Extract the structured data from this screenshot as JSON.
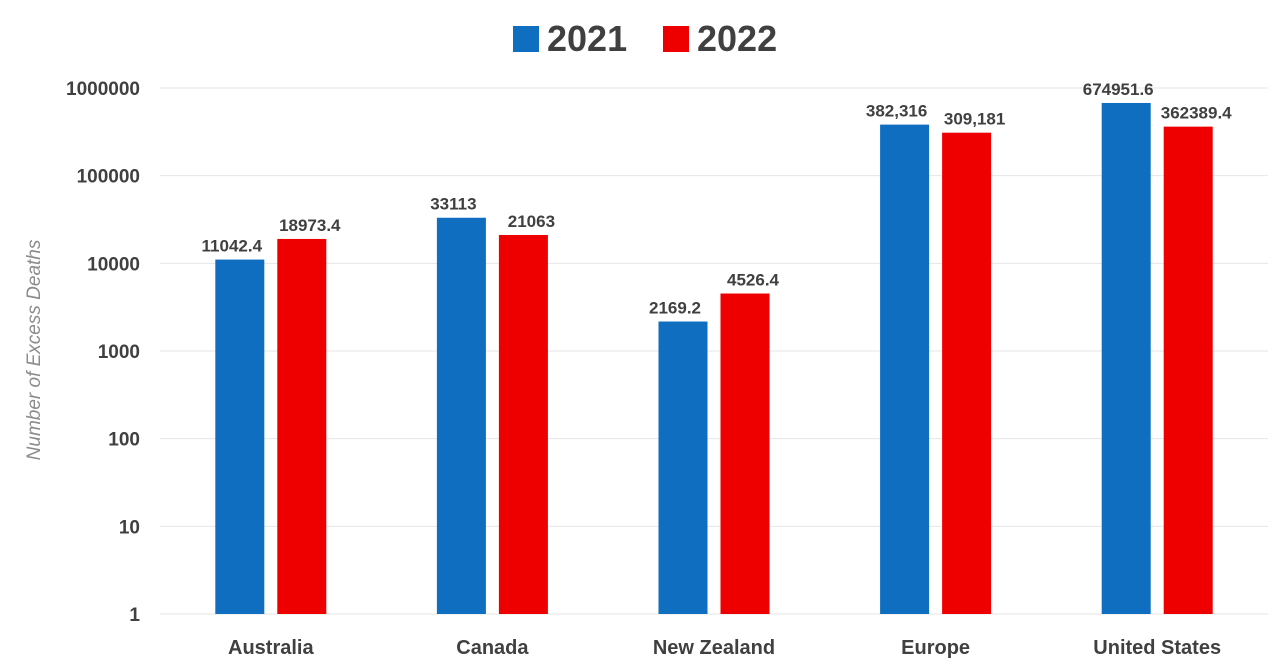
{
  "chart_data": {
    "type": "bar",
    "ylabel": "Number of Excess Deaths",
    "yscale": "log",
    "ylim": [
      1,
      1000000
    ],
    "yticks": [
      "1",
      "10",
      "100",
      "1000",
      "10000",
      "100000",
      "1000000"
    ],
    "grid": true,
    "legend_position": "top",
    "categories": [
      "Australia",
      "Canada",
      "New Zealand",
      "Europe",
      "United States"
    ],
    "series": [
      {
        "name": "2021",
        "color": "#0f6ebf",
        "values": [
          11042.4,
          33113,
          2169.2,
          382316,
          674951.6
        ],
        "labels": [
          "11042.4",
          "33113",
          "2169.2",
          "382,316",
          "674951.6"
        ]
      },
      {
        "name": "2022",
        "color": "#ee0000",
        "values": [
          18973.4,
          21063,
          4526.4,
          309181,
          362389.4
        ],
        "labels": [
          "18973.4",
          "21063",
          "4526.4",
          "309,181",
          "362389.4"
        ]
      }
    ]
  }
}
